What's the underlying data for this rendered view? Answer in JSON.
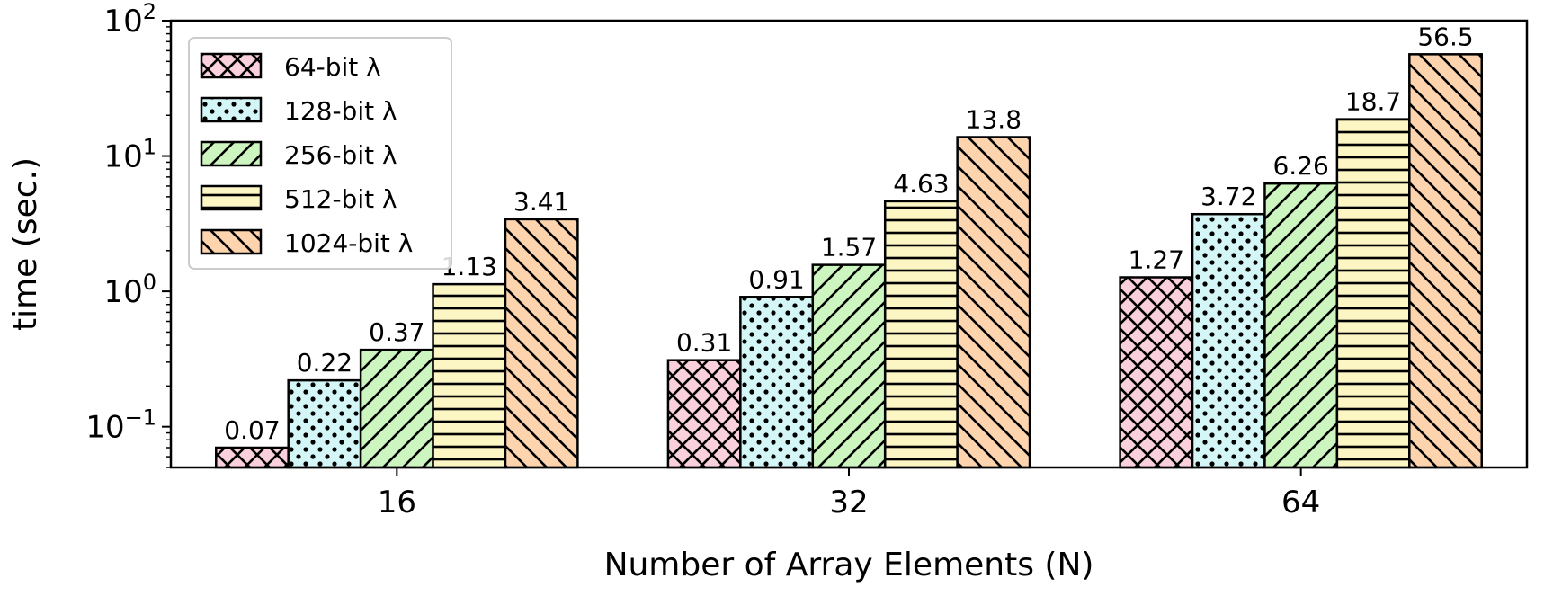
{
  "chart_data": {
    "type": "bar",
    "xlabel": "Number of Array Elements (N)",
    "ylabel": "time (sec.)",
    "yscale": "log",
    "ylim": [
      0.05,
      100
    ],
    "y_ticks": [
      {
        "value": 0.1,
        "base": "10",
        "exp": "−1"
      },
      {
        "value": 1,
        "base": "10",
        "exp": "0"
      },
      {
        "value": 10,
        "base": "10",
        "exp": "1"
      },
      {
        "value": 100,
        "base": "10",
        "exp": "2"
      }
    ],
    "categories": [
      "16",
      "32",
      "64"
    ],
    "series": [
      {
        "name": "64-bit λ",
        "color": "#f9d0dc",
        "hatch": "crosshatch",
        "values": [
          0.07,
          0.31,
          1.27
        ],
        "labels": [
          "0.07",
          "0.31",
          "1.27"
        ]
      },
      {
        "name": "128-bit λ",
        "color": "#d4f6f6",
        "hatch": "dots",
        "values": [
          0.22,
          0.91,
          3.72
        ],
        "labels": [
          "0.22",
          "0.91",
          "3.72"
        ]
      },
      {
        "name": "256-bit λ",
        "color": "#cdf5c0",
        "hatch": "forward-diagonal",
        "values": [
          0.37,
          1.57,
          6.26
        ],
        "labels": [
          "0.37",
          "1.57",
          "6.26"
        ]
      },
      {
        "name": "512-bit λ",
        "color": "#fbf6c4",
        "hatch": "horizontal",
        "values": [
          1.13,
          4.63,
          18.7
        ],
        "labels": [
          "1.13",
          "4.63",
          "18.7"
        ]
      },
      {
        "name": "1024-bit λ",
        "color": "#fdd4ae",
        "hatch": "back-diagonal",
        "values": [
          3.41,
          13.8,
          56.5
        ],
        "labels": [
          "3.41",
          "13.8",
          "56.5"
        ]
      }
    ],
    "legend_position": "top-left",
    "grid": false
  }
}
